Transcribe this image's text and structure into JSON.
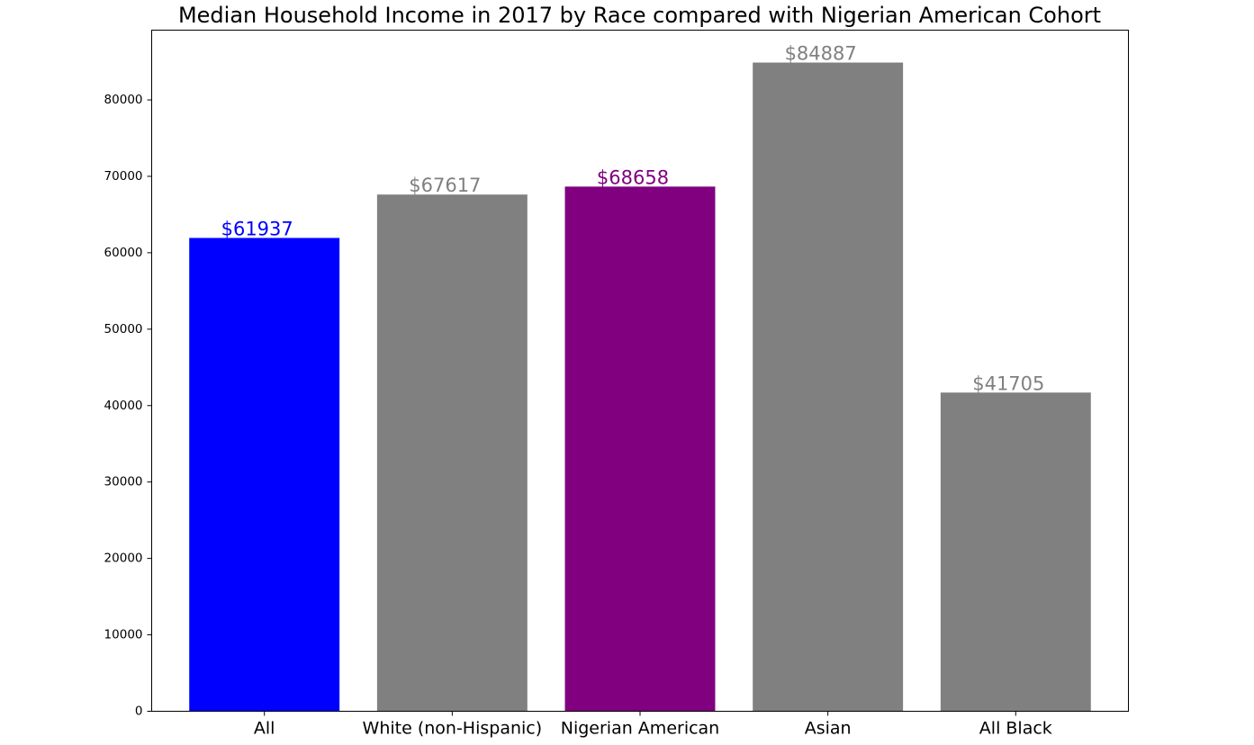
{
  "chart_data": {
    "type": "bar",
    "title": "Median Household Income in 2017 by Race compared with Nigerian American Cohort",
    "xlabel": "",
    "ylabel": "",
    "categories": [
      "All",
      "White (non-Hispanic)",
      "Nigerian American",
      "Asian",
      "All Black"
    ],
    "values": [
      61937,
      67617,
      68658,
      84887,
      41705
    ],
    "data_labels": [
      "$61937",
      "$67617",
      "$68658",
      "$84887",
      "$41705"
    ],
    "bar_colors": [
      "#0000ff",
      "#808080",
      "#800080",
      "#808080",
      "#808080"
    ],
    "label_colors": [
      "#0000ff",
      "#808080",
      "#800080",
      "#808080",
      "#808080"
    ],
    "ylim": [
      0,
      89130
    ],
    "yticks": [
      0,
      10000,
      20000,
      30000,
      40000,
      50000,
      60000,
      70000,
      80000
    ],
    "ytick_labels": [
      "0",
      "10000",
      "20000",
      "30000",
      "40000",
      "50000",
      "60000",
      "70000",
      "80000"
    ],
    "grid": false,
    "legend": "none"
  }
}
